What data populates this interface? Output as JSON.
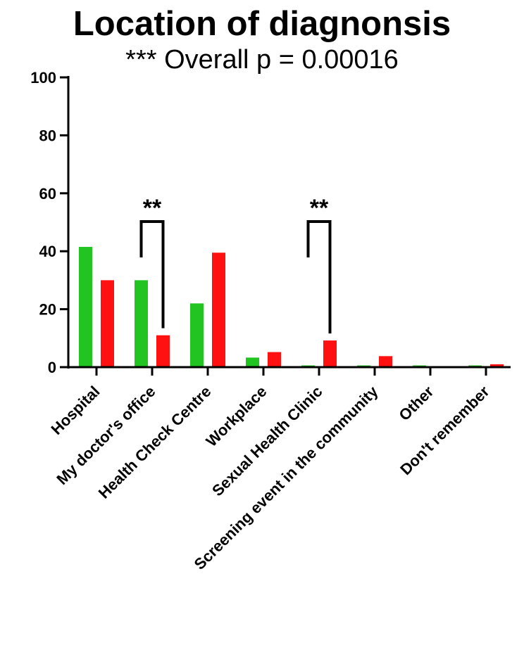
{
  "chart_data": {
    "type": "bar",
    "title": "Location of diagnonsis",
    "subtitle": "*** Overall p = 0.00016",
    "xlabel": "",
    "ylabel": "",
    "ylim": [
      0,
      100
    ],
    "yticks": [
      "0",
      "20",
      "40",
      "60",
      "80",
      "100"
    ],
    "grid": false,
    "legend": "none",
    "categories": [
      "Hospital",
      "My doctor's office",
      "Health Check Centre",
      "Workplace",
      "Sexual Health Clinic",
      "Screening event in the community",
      "Other",
      "Don't remember"
    ],
    "series": [
      {
        "color": "#22c422",
        "values": [
          41.5,
          30,
          22,
          3.3,
          0.6,
          0.6,
          0.6,
          0.6
        ]
      },
      {
        "color": "#ff1111",
        "values": [
          30,
          11,
          39.5,
          5.2,
          9.2,
          3.8,
          0,
          1
        ]
      }
    ],
    "annotations": [
      {
        "text": "**",
        "category_index": 1
      },
      {
        "text": "**",
        "category_index": 4
      }
    ]
  }
}
